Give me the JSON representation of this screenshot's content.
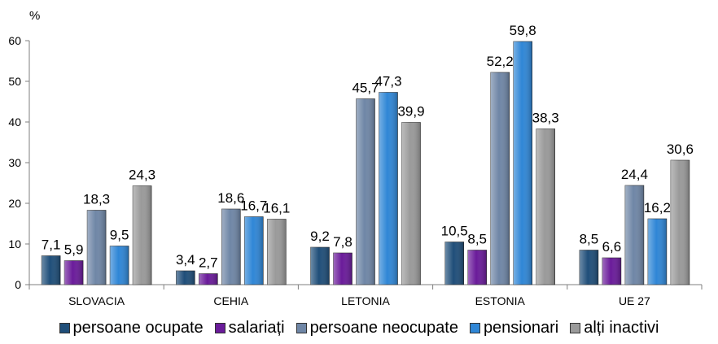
{
  "chart_data": {
    "type": "bar",
    "ylabel": "%",
    "ylim": [
      0,
      60
    ],
    "yticks": [
      0,
      10,
      20,
      30,
      40,
      50,
      60
    ],
    "categories": [
      "SLOVACIA",
      "CEHIA",
      "LETONIA",
      "ESTONIA",
      "UE 27"
    ],
    "series": [
      {
        "name": "persoane ocupate",
        "color": "#1f4e79",
        "values": [
          7.1,
          3.4,
          9.2,
          10.5,
          8.5
        ],
        "labels": [
          "7,1",
          "3,4",
          "9,2",
          "10,5",
          "8,5"
        ]
      },
      {
        "name": "salariați",
        "color": "#6a1b9a",
        "values": [
          5.9,
          2.7,
          7.8,
          8.5,
          6.6
        ],
        "labels": [
          "5,9",
          "2,7",
          "7,8",
          "8,5",
          "6,6"
        ]
      },
      {
        "name": "persoane neocupate",
        "color": "#6f86a6",
        "values": [
          18.3,
          18.6,
          45.7,
          52.2,
          24.4
        ],
        "labels": [
          "18,3",
          "18,6",
          "45,7",
          "52,2",
          "24,4"
        ]
      },
      {
        "name": "pensionari",
        "color": "#2f86d6",
        "values": [
          9.5,
          16.7,
          47.3,
          59.8,
          16.2
        ],
        "labels": [
          "9,5",
          "16,7",
          "47,3",
          "59,8",
          "16,2"
        ]
      },
      {
        "name": "alți inactivi",
        "color": "#9a9a9a",
        "values": [
          24.3,
          16.1,
          39.9,
          38.3,
          30.6
        ],
        "labels": [
          "24,3",
          "16,1",
          "39,9",
          "38,3",
          "30,6"
        ]
      }
    ],
    "legend_position": "bottom",
    "grid": false
  }
}
